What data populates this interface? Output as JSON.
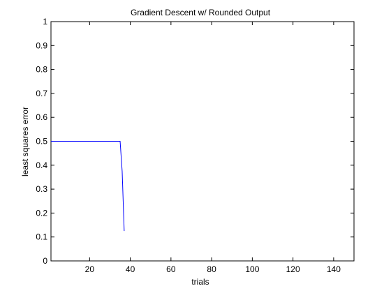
{
  "chart_data": {
    "type": "line",
    "title": "Gradient Descent w/ Rounded Output",
    "xlabel": "trials",
    "ylabel": "least squares error",
    "xlim": [
      1,
      150
    ],
    "ylim": [
      0,
      1
    ],
    "x_ticks": [
      20,
      40,
      60,
      80,
      100,
      120,
      140
    ],
    "x_tick_labels": [
      "20",
      "40",
      "60",
      "80",
      "100",
      "120",
      "140"
    ],
    "y_ticks": [
      0,
      0.1,
      0.2,
      0.3,
      0.4,
      0.5,
      0.6,
      0.7,
      0.8,
      0.9,
      1
    ],
    "y_tick_labels": [
      "0",
      "0.1",
      "0.2",
      "0.3",
      "0.4",
      "0.5",
      "0.6",
      "0.7",
      "0.8",
      "0.9",
      "1"
    ],
    "grid": false,
    "legend": "none",
    "series": [
      {
        "color": "#0000ff",
        "x": [
          1,
          2,
          3,
          4,
          5,
          6,
          7,
          8,
          9,
          10,
          11,
          12,
          13,
          14,
          15,
          16,
          17,
          18,
          19,
          20,
          21,
          22,
          23,
          24,
          25,
          26,
          27,
          28,
          29,
          30,
          31,
          32,
          33,
          34,
          35,
          36,
          37
        ],
        "y": [
          0.5,
          0.5,
          0.5,
          0.5,
          0.5,
          0.5,
          0.5,
          0.5,
          0.5,
          0.5,
          0.5,
          0.5,
          0.5,
          0.5,
          0.5,
          0.5,
          0.5,
          0.5,
          0.5,
          0.5,
          0.5,
          0.5,
          0.5,
          0.5,
          0.5,
          0.5,
          0.5,
          0.5,
          0.5,
          0.5,
          0.5,
          0.5,
          0.5,
          0.5,
          0.5,
          0.375,
          0.125
        ]
      }
    ]
  }
}
